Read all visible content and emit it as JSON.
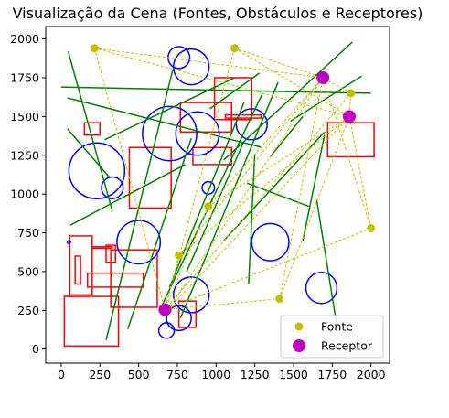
{
  "chart_data": {
    "type": "scatter",
    "title": "Visualização da Cena (Fontes, Obstáculos e Receptores)",
    "xlabel": "",
    "ylabel": "",
    "xlim": [
      -100,
      2120
    ],
    "ylim": [
      -90,
      2080
    ],
    "x_ticks": [
      0,
      250,
      500,
      750,
      1000,
      1250,
      1500,
      1750,
      2000
    ],
    "y_ticks": [
      0,
      250,
      500,
      750,
      1000,
      1250,
      1500,
      1750,
      2000
    ],
    "grid": false,
    "legend_position": "lower-right",
    "series": [
      {
        "name": "Fonte",
        "color": "#bfbf00",
        "points": [
          {
            "x": 215,
            "y": 1940
          },
          {
            "x": 1120,
            "y": 1940
          },
          {
            "x": 1870,
            "y": 1650
          },
          {
            "x": 950,
            "y": 920
          },
          {
            "x": 760,
            "y": 605
          },
          {
            "x": 2000,
            "y": 780
          },
          {
            "x": 1410,
            "y": 325
          },
          {
            "x": 690,
            "y": 255
          }
        ]
      },
      {
        "name": "Receptor",
        "color": "#bf00bf",
        "points": [
          {
            "x": 1690,
            "y": 1750
          },
          {
            "x": 1860,
            "y": 1500
          },
          {
            "x": 670,
            "y": 255
          }
        ]
      }
    ],
    "ray_paths": [
      [
        [
          215,
          1940
        ],
        [
          1690,
          1750
        ]
      ],
      [
        [
          215,
          1940
        ],
        [
          1860,
          1500
        ]
      ],
      [
        [
          215,
          1940
        ],
        [
          670,
          255
        ]
      ],
      [
        [
          1120,
          1940
        ],
        [
          1690,
          1750
        ]
      ],
      [
        [
          1120,
          1940
        ],
        [
          1860,
          1500
        ]
      ],
      [
        [
          1120,
          1940
        ],
        [
          670,
          255
        ]
      ],
      [
        [
          1870,
          1650
        ],
        [
          1690,
          1750
        ]
      ],
      [
        [
          1870,
          1650
        ],
        [
          1860,
          1500
        ]
      ],
      [
        [
          1870,
          1650
        ],
        [
          670,
          255
        ]
      ],
      [
        [
          950,
          920
        ],
        [
          1690,
          1750
        ]
      ],
      [
        [
          950,
          920
        ],
        [
          1860,
          1500
        ]
      ],
      [
        [
          950,
          920
        ],
        [
          670,
          255
        ]
      ],
      [
        [
          760,
          605
        ],
        [
          1690,
          1750
        ]
      ],
      [
        [
          760,
          605
        ],
        [
          1860,
          1500
        ]
      ],
      [
        [
          760,
          605
        ],
        [
          670,
          255
        ]
      ],
      [
        [
          2000,
          780
        ],
        [
          1690,
          1750
        ]
      ],
      [
        [
          2000,
          780
        ],
        [
          1860,
          1500
        ]
      ],
      [
        [
          2000,
          780
        ],
        [
          670,
          255
        ]
      ],
      [
        [
          1410,
          325
        ],
        [
          1690,
          1750
        ]
      ],
      [
        [
          1410,
          325
        ],
        [
          1860,
          1500
        ]
      ],
      [
        [
          1410,
          325
        ],
        [
          670,
          255
        ]
      ],
      [
        [
          690,
          255
        ],
        [
          1690,
          1750
        ]
      ],
      [
        [
          690,
          255
        ],
        [
          1860,
          1500
        ]
      ]
    ],
    "green_lines": [
      [
        [
          45,
          1920
        ],
        [
          330,
          890
        ]
      ],
      [
        [
          0,
          1690
        ],
        [
          2000,
          1650
        ]
      ],
      [
        [
          40,
          1620
        ],
        [
          1300,
          1300
        ]
      ],
      [
        [
          40,
          1420
        ],
        [
          310,
          1110
        ]
      ],
      [
        [
          60,
          800
        ],
        [
          800,
          1190
        ]
      ],
      [
        [
          280,
          1350
        ],
        [
          1120,
          1750
        ]
      ],
      [
        [
          290,
          60
        ],
        [
          720,
          1800
        ]
      ],
      [
        [
          430,
          130
        ],
        [
          840,
          1360
        ]
      ],
      [
        [
          650,
          280
        ],
        [
          1300,
          1650
        ]
      ],
      [
        [
          700,
          400
        ],
        [
          1180,
          1590
        ]
      ],
      [
        [
          770,
          200
        ],
        [
          1400,
          1720
        ]
      ],
      [
        [
          810,
          500
        ],
        [
          1180,
          1340
        ]
      ],
      [
        [
          1050,
          700
        ],
        [
          1700,
          1400
        ]
      ],
      [
        [
          1050,
          1220
        ],
        [
          1880,
          1980
        ]
      ],
      [
        [
          1210,
          420
        ],
        [
          1250,
          1260
        ]
      ],
      [
        [
          1350,
          1240
        ],
        [
          1560,
          1500
        ]
      ],
      [
        [
          1480,
          1470
        ],
        [
          1940,
          1760
        ]
      ],
      [
        [
          1560,
          700
        ],
        [
          1700,
          1380
        ]
      ],
      [
        [
          1650,
          960
        ],
        [
          1780,
          150
        ]
      ],
      [
        [
          960,
          1550
        ],
        [
          1280,
          1780
        ]
      ],
      [
        [
          1200,
          1070
        ],
        [
          1600,
          920
        ]
      ]
    ],
    "rectangles": [
      {
        "x": 20,
        "y": 20,
        "w": 350,
        "h": 320
      },
      {
        "x": 55,
        "y": 350,
        "w": 145,
        "h": 380
      },
      {
        "x": 90,
        "y": 420,
        "w": 35,
        "h": 180
      },
      {
        "x": 170,
        "y": 400,
        "w": 360,
        "h": 90
      },
      {
        "x": 320,
        "y": 270,
        "w": 300,
        "h": 370
      },
      {
        "x": 290,
        "y": 560,
        "w": 60,
        "h": 110
      },
      {
        "x": 200,
        "y": 650,
        "w": 130,
        "h": 10
      },
      {
        "x": 440,
        "y": 910,
        "w": 270,
        "h": 390
      },
      {
        "x": 150,
        "y": 1380,
        "w": 100,
        "h": 80
      },
      {
        "x": 760,
        "y": 140,
        "w": 110,
        "h": 170
      },
      {
        "x": 770,
        "y": 1400,
        "w": 330,
        "h": 190
      },
      {
        "x": 850,
        "y": 1190,
        "w": 250,
        "h": 110
      },
      {
        "x": 990,
        "y": 1480,
        "w": 240,
        "h": 270
      },
      {
        "x": 1060,
        "y": 1490,
        "w": 230,
        "h": 20
      },
      {
        "x": 1720,
        "y": 1240,
        "w": 300,
        "h": 220
      }
    ],
    "circles": [
      {
        "x": 230,
        "y": 1150,
        "r": 180
      },
      {
        "x": 330,
        "y": 1040,
        "r": 70
      },
      {
        "x": 500,
        "y": 690,
        "r": 140
      },
      {
        "x": 680,
        "y": 120,
        "r": 50
      },
      {
        "x": 760,
        "y": 200,
        "r": 80
      },
      {
        "x": 840,
        "y": 350,
        "r": 115
      },
      {
        "x": 700,
        "y": 1390,
        "r": 175
      },
      {
        "x": 880,
        "y": 1390,
        "r": 140
      },
      {
        "x": 950,
        "y": 1040,
        "r": 40
      },
      {
        "x": 760,
        "y": 1880,
        "r": 70
      },
      {
        "x": 840,
        "y": 1820,
        "r": 115
      },
      {
        "x": 1230,
        "y": 1450,
        "r": 100
      },
      {
        "x": 1350,
        "y": 690,
        "r": 120
      },
      {
        "x": 1680,
        "y": 395,
        "r": 100
      },
      {
        "x": 50,
        "y": 690,
        "r": 10
      }
    ]
  }
}
